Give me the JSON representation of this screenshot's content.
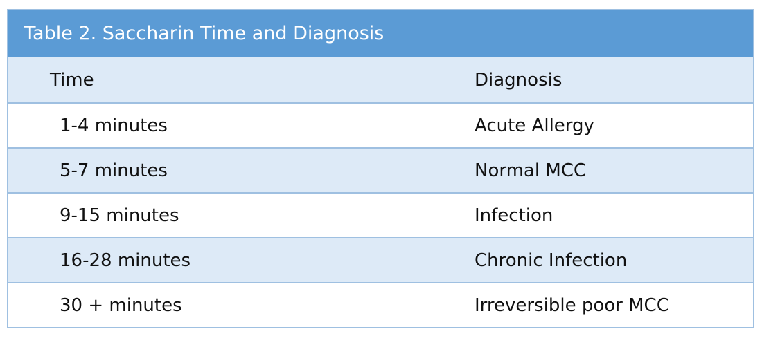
{
  "table": {
    "caption": "Table 2. Saccharin Time and Diagnosis",
    "headers": {
      "time": "Time",
      "diagnosis": "Diagnosis"
    },
    "rows": [
      {
        "time": "1-4 minutes",
        "diagnosis": "Acute Allergy"
      },
      {
        "time": "5-7 minutes",
        "diagnosis": "Normal MCC"
      },
      {
        "time": "9-15 minutes",
        "diagnosis": "Infection"
      },
      {
        "time": "16-28 minutes",
        "diagnosis": "Chronic Infection"
      },
      {
        "time": "30 + minutes",
        "diagnosis": "Irreversible poor MCC"
      }
    ]
  },
  "colors": {
    "caption_bg": "#5b9bd5",
    "stripe_bg": "#ddeaf7",
    "border": "#9fc0e1"
  }
}
